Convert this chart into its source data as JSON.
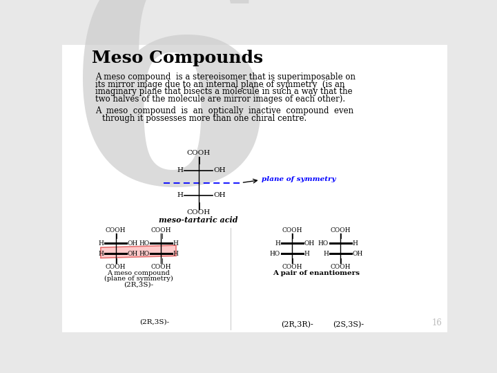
{
  "title": "Meso Compounds",
  "title_fontsize": 18,
  "bg_color": "#e8e8e8",
  "slide_bg": "#ffffff",
  "para1_line1": "A meso compound  is a stereoisomer that is superimposable on",
  "para1_line2": "its mirror image due to an internal plane of symmetry  (is an",
  "para1_line3": "imaginary plane that bisects a molecule in such a way that the",
  "para1_line4": "two halves of the molecule are mirror images of each other).",
  "para2_line1": "A  meso  compound  is  an  optically  inactive  compound  even",
  "para2_line2": "through it possesses more than one chiral centre.",
  "page_number": "16",
  "plane_label": "plane of symmetry",
  "meso_tartaric": "meso-tartaric acid",
  "meso_compound_label1": "A meso compound",
  "meso_compound_label2": "(plane of symmetry)",
  "enantiomers_label": "A pair of enantiomers",
  "label_2r3r": "(2R,3R)-",
  "label_2s3s": "(2S,3S)-",
  "label_2r3s": "(2R,3S)-"
}
